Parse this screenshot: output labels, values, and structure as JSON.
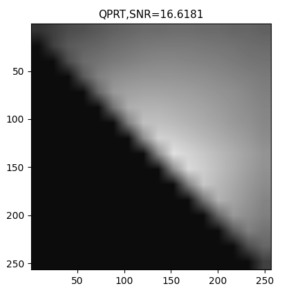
{
  "chart_data": {
    "type": "heatmap",
    "title": "QPRT,SNR=16.6181",
    "color": "gray",
    "color_range": [
      0,
      1
    ],
    "xlim": [
      0.5,
      256.5
    ],
    "ylim": [
      256.5,
      0.5
    ],
    "xticks": [
      50,
      100,
      150,
      200,
      250
    ],
    "yticks": [
      50,
      100,
      150,
      200,
      250
    ],
    "cells": [
      [
        0.2,
        0.25,
        0.3,
        0.32,
        0.35,
        0.38,
        0.4,
        0.42,
        0.42,
        0.43,
        0.43,
        0.42,
        0.42,
        0.4,
        0.4,
        0.38
      ],
      [
        0.05,
        0.25,
        0.35,
        0.38,
        0.4,
        0.43,
        0.45,
        0.47,
        0.48,
        0.48,
        0.48,
        0.47,
        0.46,
        0.45,
        0.43,
        0.42
      ],
      [
        0.05,
        0.05,
        0.3,
        0.42,
        0.45,
        0.48,
        0.5,
        0.52,
        0.53,
        0.53,
        0.52,
        0.51,
        0.5,
        0.48,
        0.46,
        0.45
      ],
      [
        0.05,
        0.05,
        0.05,
        0.35,
        0.5,
        0.55,
        0.57,
        0.58,
        0.58,
        0.58,
        0.57,
        0.56,
        0.54,
        0.52,
        0.5,
        0.48
      ],
      [
        0.05,
        0.05,
        0.05,
        0.05,
        0.4,
        0.6,
        0.63,
        0.64,
        0.64,
        0.63,
        0.62,
        0.6,
        0.58,
        0.56,
        0.53,
        0.5
      ],
      [
        0.05,
        0.05,
        0.05,
        0.05,
        0.05,
        0.45,
        0.68,
        0.7,
        0.7,
        0.68,
        0.66,
        0.64,
        0.61,
        0.58,
        0.55,
        0.52
      ],
      [
        0.05,
        0.05,
        0.05,
        0.05,
        0.05,
        0.05,
        0.5,
        0.75,
        0.75,
        0.73,
        0.7,
        0.67,
        0.64,
        0.6,
        0.57,
        0.53
      ],
      [
        0.05,
        0.05,
        0.05,
        0.05,
        0.05,
        0.05,
        0.05,
        0.55,
        0.82,
        0.8,
        0.76,
        0.72,
        0.68,
        0.64,
        0.6,
        0.55
      ],
      [
        0.05,
        0.05,
        0.05,
        0.05,
        0.05,
        0.05,
        0.05,
        0.05,
        0.55,
        0.88,
        0.83,
        0.78,
        0.73,
        0.68,
        0.63,
        0.58
      ],
      [
        0.05,
        0.05,
        0.05,
        0.05,
        0.05,
        0.05,
        0.05,
        0.05,
        0.05,
        0.55,
        0.85,
        0.8,
        0.74,
        0.68,
        0.62,
        0.57
      ],
      [
        0.05,
        0.05,
        0.05,
        0.05,
        0.05,
        0.05,
        0.05,
        0.05,
        0.05,
        0.05,
        0.5,
        0.78,
        0.72,
        0.66,
        0.6,
        0.55
      ],
      [
        0.05,
        0.05,
        0.05,
        0.05,
        0.05,
        0.05,
        0.05,
        0.05,
        0.05,
        0.05,
        0.05,
        0.45,
        0.7,
        0.64,
        0.58,
        0.52
      ],
      [
        0.05,
        0.05,
        0.05,
        0.05,
        0.05,
        0.05,
        0.05,
        0.05,
        0.05,
        0.05,
        0.05,
        0.05,
        0.4,
        0.6,
        0.55,
        0.5
      ],
      [
        0.05,
        0.05,
        0.05,
        0.05,
        0.05,
        0.05,
        0.05,
        0.05,
        0.05,
        0.05,
        0.05,
        0.05,
        0.05,
        0.35,
        0.5,
        0.45
      ],
      [
        0.05,
        0.05,
        0.05,
        0.05,
        0.05,
        0.05,
        0.05,
        0.05,
        0.05,
        0.05,
        0.05,
        0.05,
        0.05,
        0.05,
        0.3,
        0.4
      ],
      [
        0.05,
        0.05,
        0.05,
        0.05,
        0.05,
        0.05,
        0.05,
        0.05,
        0.05,
        0.05,
        0.05,
        0.05,
        0.05,
        0.05,
        0.05,
        0.25
      ]
    ]
  }
}
